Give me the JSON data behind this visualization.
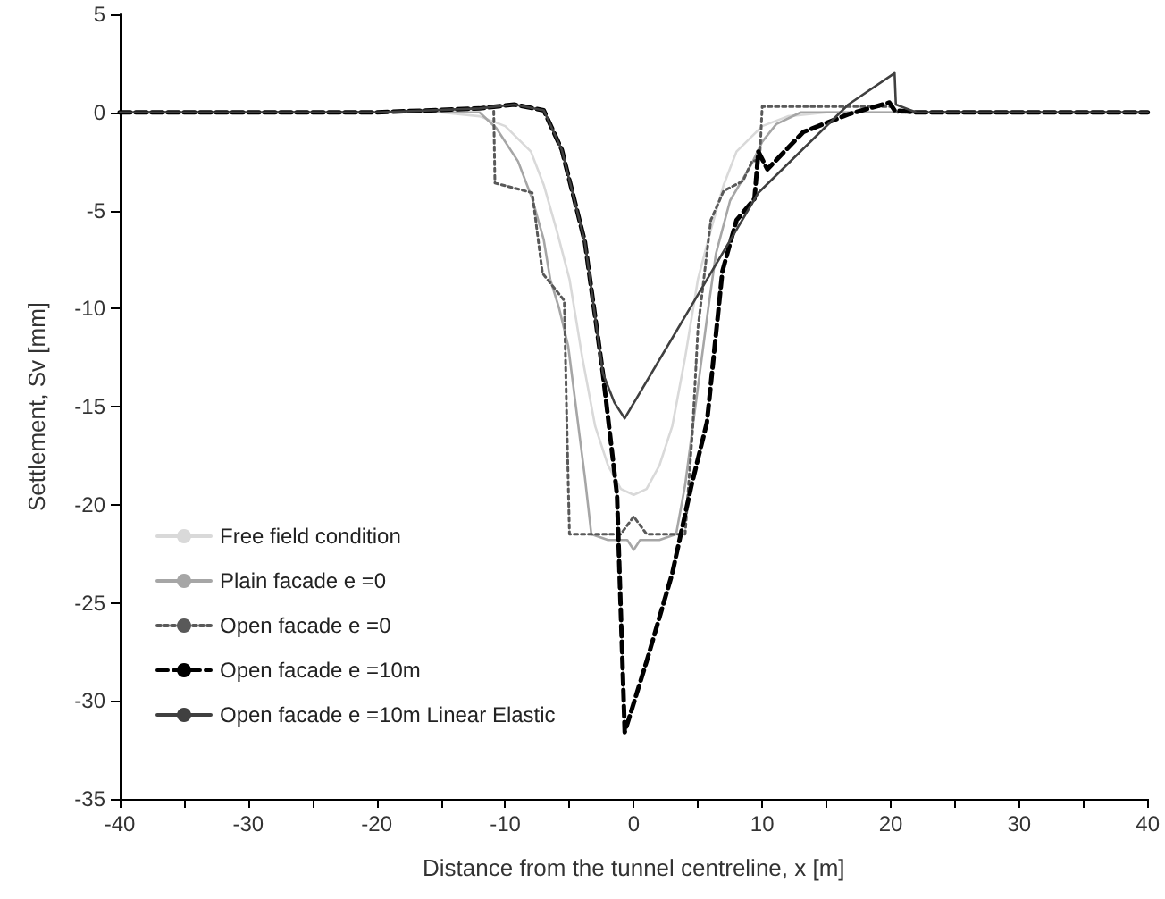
{
  "chart_data": {
    "type": "line",
    "xlabel": "Distance from the tunnel centreline, x [m]",
    "ylabel": "Settlement, Sv [mm]",
    "xlim": [
      -40,
      40
    ],
    "xticks": [
      -40,
      {
        "value": -35,
        "label": null
      },
      -30,
      {
        "value": -25,
        "label": null
      },
      -20,
      {
        "value": -15,
        "label": null
      },
      -10,
      {
        "value": -5,
        "label": null
      },
      0,
      {
        "value": 5,
        "label": null
      },
      10,
      {
        "value": 15,
        "label": null
      },
      20,
      {
        "value": 25,
        "label": null
      },
      30,
      {
        "value": 35,
        "label": null
      },
      40
    ],
    "ylim": [
      -35,
      5
    ],
    "yticks": [
      -35,
      -30,
      -25,
      -20,
      -15,
      -10,
      -5,
      0,
      5
    ],
    "grid": false,
    "legend": "bottom left",
    "marker": "none",
    "series": [
      {
        "name": "Free field condition",
        "color": "#d9d9d9",
        "line_style": "solid",
        "x": [
          -40,
          -20,
          -15,
          -12,
          -10,
          -8,
          -7,
          -6,
          -5,
          -4,
          -3,
          -2,
          -1,
          0,
          1,
          2,
          3,
          4,
          5,
          6,
          7,
          8,
          10,
          12,
          15,
          20,
          40
        ],
        "values": [
          0,
          0,
          0,
          -0.2,
          -0.7,
          -2,
          -3.7,
          -6,
          -8.5,
          -12.5,
          -16,
          -18,
          -19.2,
          -19.5,
          -19.2,
          -18,
          -16,
          -12.5,
          -8.5,
          -6,
          -3.7,
          -2,
          -0.7,
          -0.2,
          0,
          0,
          0
        ]
      },
      {
        "name": "Plain facade e =0",
        "color": "#a6a6a6",
        "line_style": "solid",
        "x": [
          -40,
          -20,
          -12,
          -10.7,
          -9,
          -7.9,
          -7,
          -6.5,
          -5.8,
          -5.1,
          -4.5,
          -3.8,
          -3.3,
          -2,
          -0.5,
          0,
          0.5,
          2,
          3.3,
          4,
          4.6,
          5.2,
          5.8,
          6.4,
          7.5,
          9.2,
          10,
          11.1,
          13,
          20,
          40
        ],
        "values": [
          0,
          0,
          0,
          -0.8,
          -2.5,
          -4.4,
          -6.5,
          -8.5,
          -10,
          -11.9,
          -15,
          -18.6,
          -21.5,
          -21.8,
          -21.8,
          -22.3,
          -21.8,
          -21.8,
          -21.5,
          -19,
          -16,
          -13,
          -10,
          -7.2,
          -4.5,
          -2.6,
          -1.5,
          -0.6,
          0,
          0,
          0
        ]
      },
      {
        "name": "Open facade e =0",
        "color": "#595959",
        "line_style": "dotted",
        "x": [
          -40,
          -20,
          -12,
          -10.9,
          -10.8,
          -7.9,
          -7.1,
          -5.4,
          -5.2,
          -5,
          -1,
          0,
          1,
          4,
          4.6,
          5,
          6,
          7,
          8.5,
          9.2,
          9.8,
          10,
          12,
          20,
          20.5,
          40
        ],
        "values": [
          0,
          0,
          0.2,
          0.3,
          -3.6,
          -4.1,
          -8.2,
          -9.6,
          -16,
          -21.5,
          -21.5,
          -20.6,
          -21.5,
          -21.5,
          -16,
          -11,
          -5.5,
          -4,
          -3.5,
          -2.5,
          -2.4,
          0.3,
          0.3,
          0.3,
          0,
          0
        ]
      },
      {
        "name": "Open facade e =10m",
        "color": "#000000",
        "line_style": "dashed",
        "x": [
          -40,
          -20,
          -12,
          -9.3,
          -7,
          -5.6,
          -3.8,
          -2.4,
          -1.3,
          -0.7,
          1,
          3,
          4.5,
          5.7,
          6.9,
          8,
          9.4,
          9.7,
          10.4,
          13.2,
          16.7,
          19.9,
          20.3,
          22,
          40
        ],
        "values": [
          0,
          0,
          0.2,
          0.4,
          0.1,
          -1.9,
          -6.6,
          -13.3,
          -19.5,
          -31.6,
          -28,
          -23.5,
          -19,
          -15.8,
          -8.1,
          -5.5,
          -4.4,
          -2,
          -2.9,
          -1,
          -0.1,
          0.5,
          0.1,
          0,
          0
        ]
      },
      {
        "name": "Open facade e =10m Linear Elastic",
        "color": "#404040",
        "line_style": "solid",
        "x": [
          -40,
          -20,
          -12,
          -9.3,
          -7,
          -5.6,
          -3.8,
          -2.4,
          -1.5,
          -0.7,
          9.7,
          16.7,
          20.3,
          20.4,
          22,
          40
        ],
        "values": [
          0,
          0,
          0.2,
          0.4,
          0.1,
          -1.9,
          -6.6,
          -13.3,
          -14.8,
          -15.6,
          -4.1,
          0.4,
          2,
          0.4,
          0,
          0
        ]
      }
    ]
  }
}
